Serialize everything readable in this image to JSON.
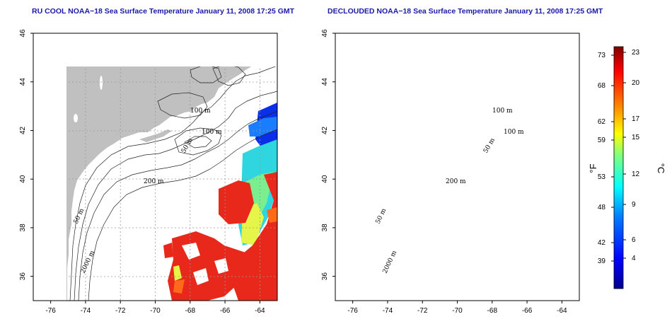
{
  "panels": [
    {
      "title": "RU COOL NOAA−18 Sea Surface Temperature January 11, 2008 17:25 GMT",
      "variant": "raw"
    },
    {
      "title": "DECLOUDED NOAA−18 Sea Surface Temperature January 11, 2008 17:25 GMT",
      "variant": "declouded"
    }
  ],
  "axes": {
    "lon_ticks": [
      "-76",
      "-74",
      "-72",
      "-70",
      "-68",
      "-66",
      "-64"
    ],
    "lat_ticks": [
      "36",
      "38",
      "40",
      "42",
      "44",
      "46"
    ],
    "lon_range": [
      -77.0,
      -63.0
    ],
    "lat_range": [
      35.0,
      46.0
    ]
  },
  "contour_labels": {
    "c100a": "100 m",
    "c100b": "100 m",
    "c50a": "50 m",
    "c200": "200 m",
    "c50b": "50 m",
    "c2000": "2000 m"
  },
  "colorbar": {
    "fahrenheit_labels": [
      "73",
      "68",
      "62",
      "59",
      "53",
      "48",
      "42",
      "39"
    ],
    "celsius_labels": [
      "23",
      "20",
      "17",
      "15",
      "12",
      "9",
      "6",
      "4"
    ],
    "fahrenheit_unit": "°F",
    "celsius_unit": "°C",
    "colors": [
      "#00008f",
      "#0000ff",
      "#0080ff",
      "#00ffff",
      "#80ff80",
      "#ffff00",
      "#ff8000",
      "#ff0000",
      "#800000"
    ]
  },
  "colors": {
    "land": "#c0c0c0",
    "ocean": "#ffffff",
    "warm": "#e8281a",
    "grid": "#9a9a9a"
  }
}
